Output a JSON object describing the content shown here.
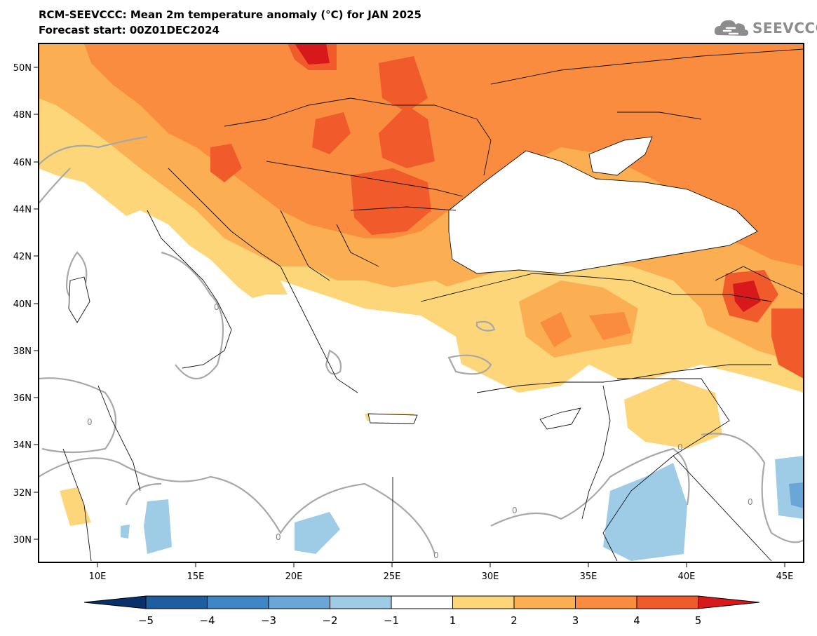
{
  "header": {
    "title": "RCM-SEEVCCC: Mean 2m temperature anomaly (°C) for JAN 2025",
    "subtitle": "Forecast start: 00Z01DEC2024"
  },
  "logo": {
    "text": "SEEVCCC"
  },
  "map": {
    "lon_range": [
      7,
      46
    ],
    "lat_range": [
      29,
      51
    ],
    "lon_ticks": [
      "10E",
      "15E",
      "20E",
      "25E",
      "30E",
      "35E",
      "40E",
      "45E"
    ],
    "lat_ticks": [
      "50N",
      "48N",
      "46N",
      "44N",
      "42N",
      "40N",
      "38N",
      "36N",
      "34N",
      "32N",
      "30N"
    ],
    "contour_zero_label": "0"
  },
  "colorbar": {
    "labels": [
      "−5",
      "−4",
      "−3",
      "−2",
      "−1",
      "1",
      "2",
      "3",
      "4",
      "5"
    ],
    "colors": {
      "below_min": "#08306b",
      "m5_m4": "#1f5e9e",
      "m4_m3": "#3f86c4",
      "m3_m2": "#6aa6d6",
      "m2_m1": "#9ecbe6",
      "m1_p1": "#ffffff",
      "p1_p2": "#fdd67a",
      "p2_p3": "#fbae52",
      "p3_p4": "#f98c3e",
      "p4_p5": "#f15a2a",
      "above_max": "#d7191c"
    }
  }
}
